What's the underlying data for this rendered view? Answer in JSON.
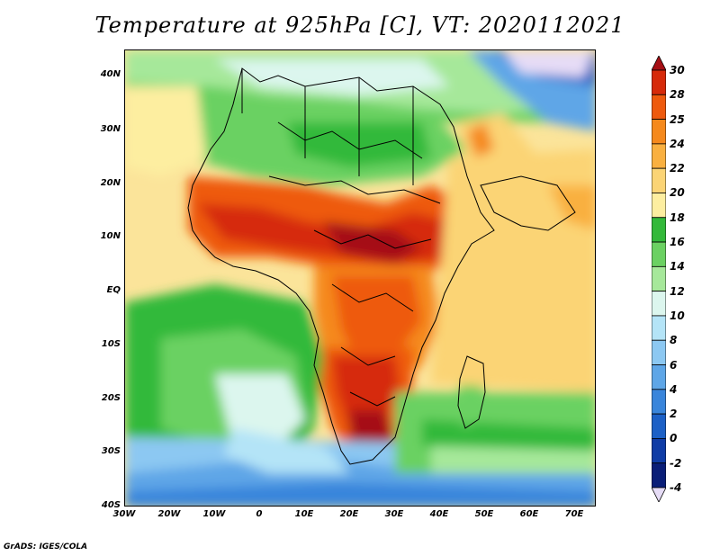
{
  "title": "Temperature at 925hPa [C], VT: 2020112021",
  "credit": "GrADS: IGES/COLA",
  "map": {
    "lat_labels": [
      "40N",
      "30N",
      "20N",
      "10N",
      "EQ",
      "10S",
      "20S",
      "30S",
      "40S"
    ],
    "lon_labels": [
      "30W",
      "20W",
      "10W",
      "0",
      "10E",
      "20E",
      "30E",
      "40E",
      "50E",
      "60E",
      "70E"
    ]
  },
  "colorbar": {
    "levels": [
      "30",
      "28",
      "25",
      "24",
      "22",
      "20",
      "18",
      "16",
      "14",
      "12",
      "10",
      "8",
      "6",
      "4",
      "2",
      "0",
      "-2",
      "-4"
    ],
    "colors": [
      "#a50f15",
      "#d62a0a",
      "#ee5a0e",
      "#f5891c",
      "#f9b040",
      "#fbd475",
      "#fdeea0",
      "#33b93a",
      "#6bd162",
      "#a6e89a",
      "#dcf6ee",
      "#b4e4f7",
      "#8cc8f2",
      "#5ea6e7",
      "#3985db",
      "#1c60c6",
      "#0f3ca6",
      "#0a1e78",
      "#e6dcf6"
    ]
  }
}
